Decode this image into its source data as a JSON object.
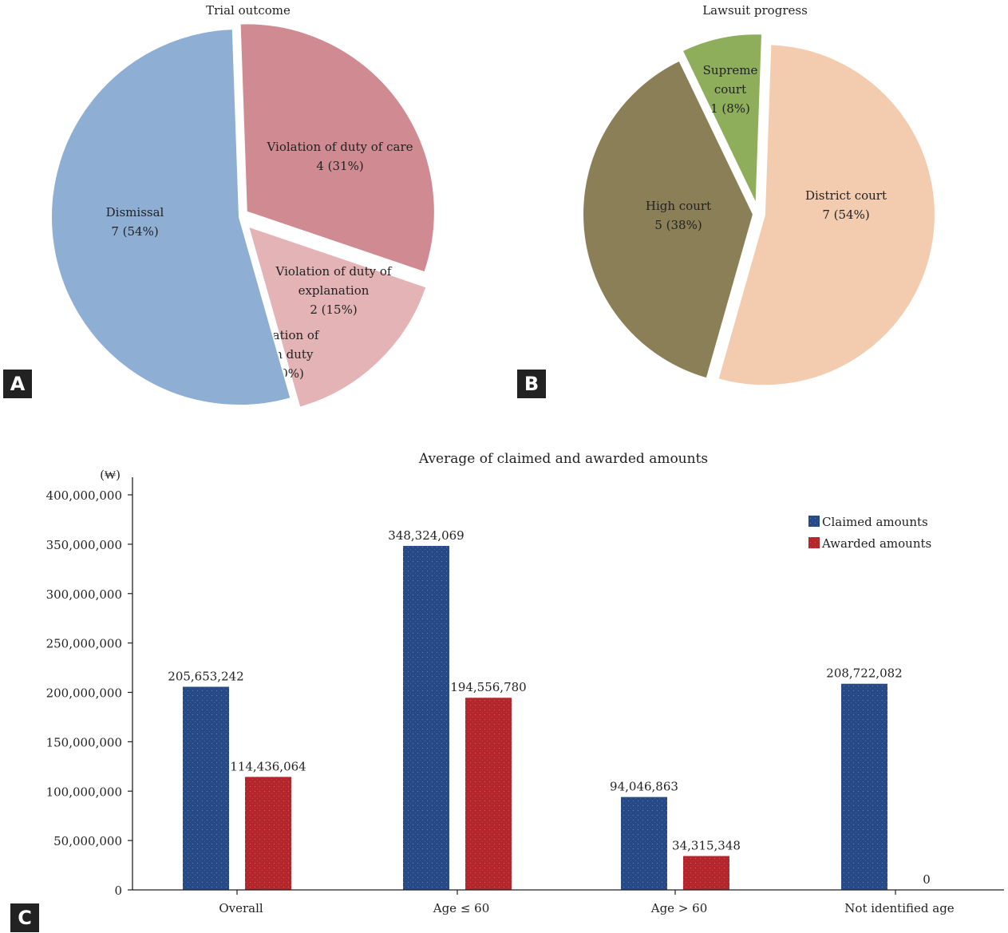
{
  "panels": {
    "a": "A",
    "b": "B",
    "c": "C"
  },
  "colors": {
    "dismissal": "#8eafd3",
    "care": "#cf8b91",
    "explanation": "#e3b3b6",
    "both": "#e3b3b6",
    "district": "#f3ccb0",
    "high": "#8b7f57",
    "supreme": "#8eae5c",
    "claimed": "#274a86",
    "awarded": "#b3262c"
  },
  "chart_data": [
    {
      "type": "pie",
      "title": "Trial outcome",
      "slices": [
        {
          "key": "care",
          "label_lines": [
            "Violation of duty of care",
            "4 (31%)"
          ],
          "value": 4
        },
        {
          "key": "explanation",
          "label_lines": [
            "Violation of duty of",
            "explanation",
            "2 (15%)"
          ],
          "value": 2
        },
        {
          "key": "both",
          "label_lines": [
            "Violation of",
            "both duty",
            "0 (0%)"
          ],
          "value": 0
        },
        {
          "key": "dismissal",
          "label_lines": [
            "Dismissal",
            "7 (54%)"
          ],
          "value": 7
        }
      ]
    },
    {
      "type": "pie",
      "title": "Lawsuit progress",
      "slices": [
        {
          "key": "district",
          "label_lines": [
            "District court",
            "7 (54%)"
          ],
          "value": 7
        },
        {
          "key": "high",
          "label_lines": [
            "High court",
            "5 (38%)"
          ],
          "value": 5
        },
        {
          "key": "supreme",
          "label_lines": [
            "Supreme",
            "court",
            "1 (8%)"
          ],
          "value": 1
        }
      ]
    },
    {
      "type": "bar",
      "title": "Average of claimed and awarded amounts",
      "ylabel": "(₩)",
      "ylim": [
        0,
        400000000
      ],
      "yticks": [
        "0",
        "50,000,000",
        "100,000,000",
        "150,000,000",
        "200,000,000",
        "250,000,000",
        "300,000,000",
        "350,000,000",
        "400,000,000"
      ],
      "categories": [
        "Overall",
        "Age ≤ 60",
        "Age > 60",
        "Not identified age"
      ],
      "legend_position": "top-right",
      "series": [
        {
          "name": "Claimed amounts",
          "values": [
            205653242,
            348324069,
            94046863,
            208722082
          ],
          "labels": [
            "205,653,242",
            "348,324,069",
            "94,046,863",
            "208,722,082"
          ]
        },
        {
          "name": "Awarded amounts",
          "values": [
            114436064,
            194556780,
            34315348,
            0
          ],
          "labels": [
            "114,436,064",
            "194,556,780",
            "34,315,348",
            "0"
          ]
        }
      ]
    }
  ]
}
